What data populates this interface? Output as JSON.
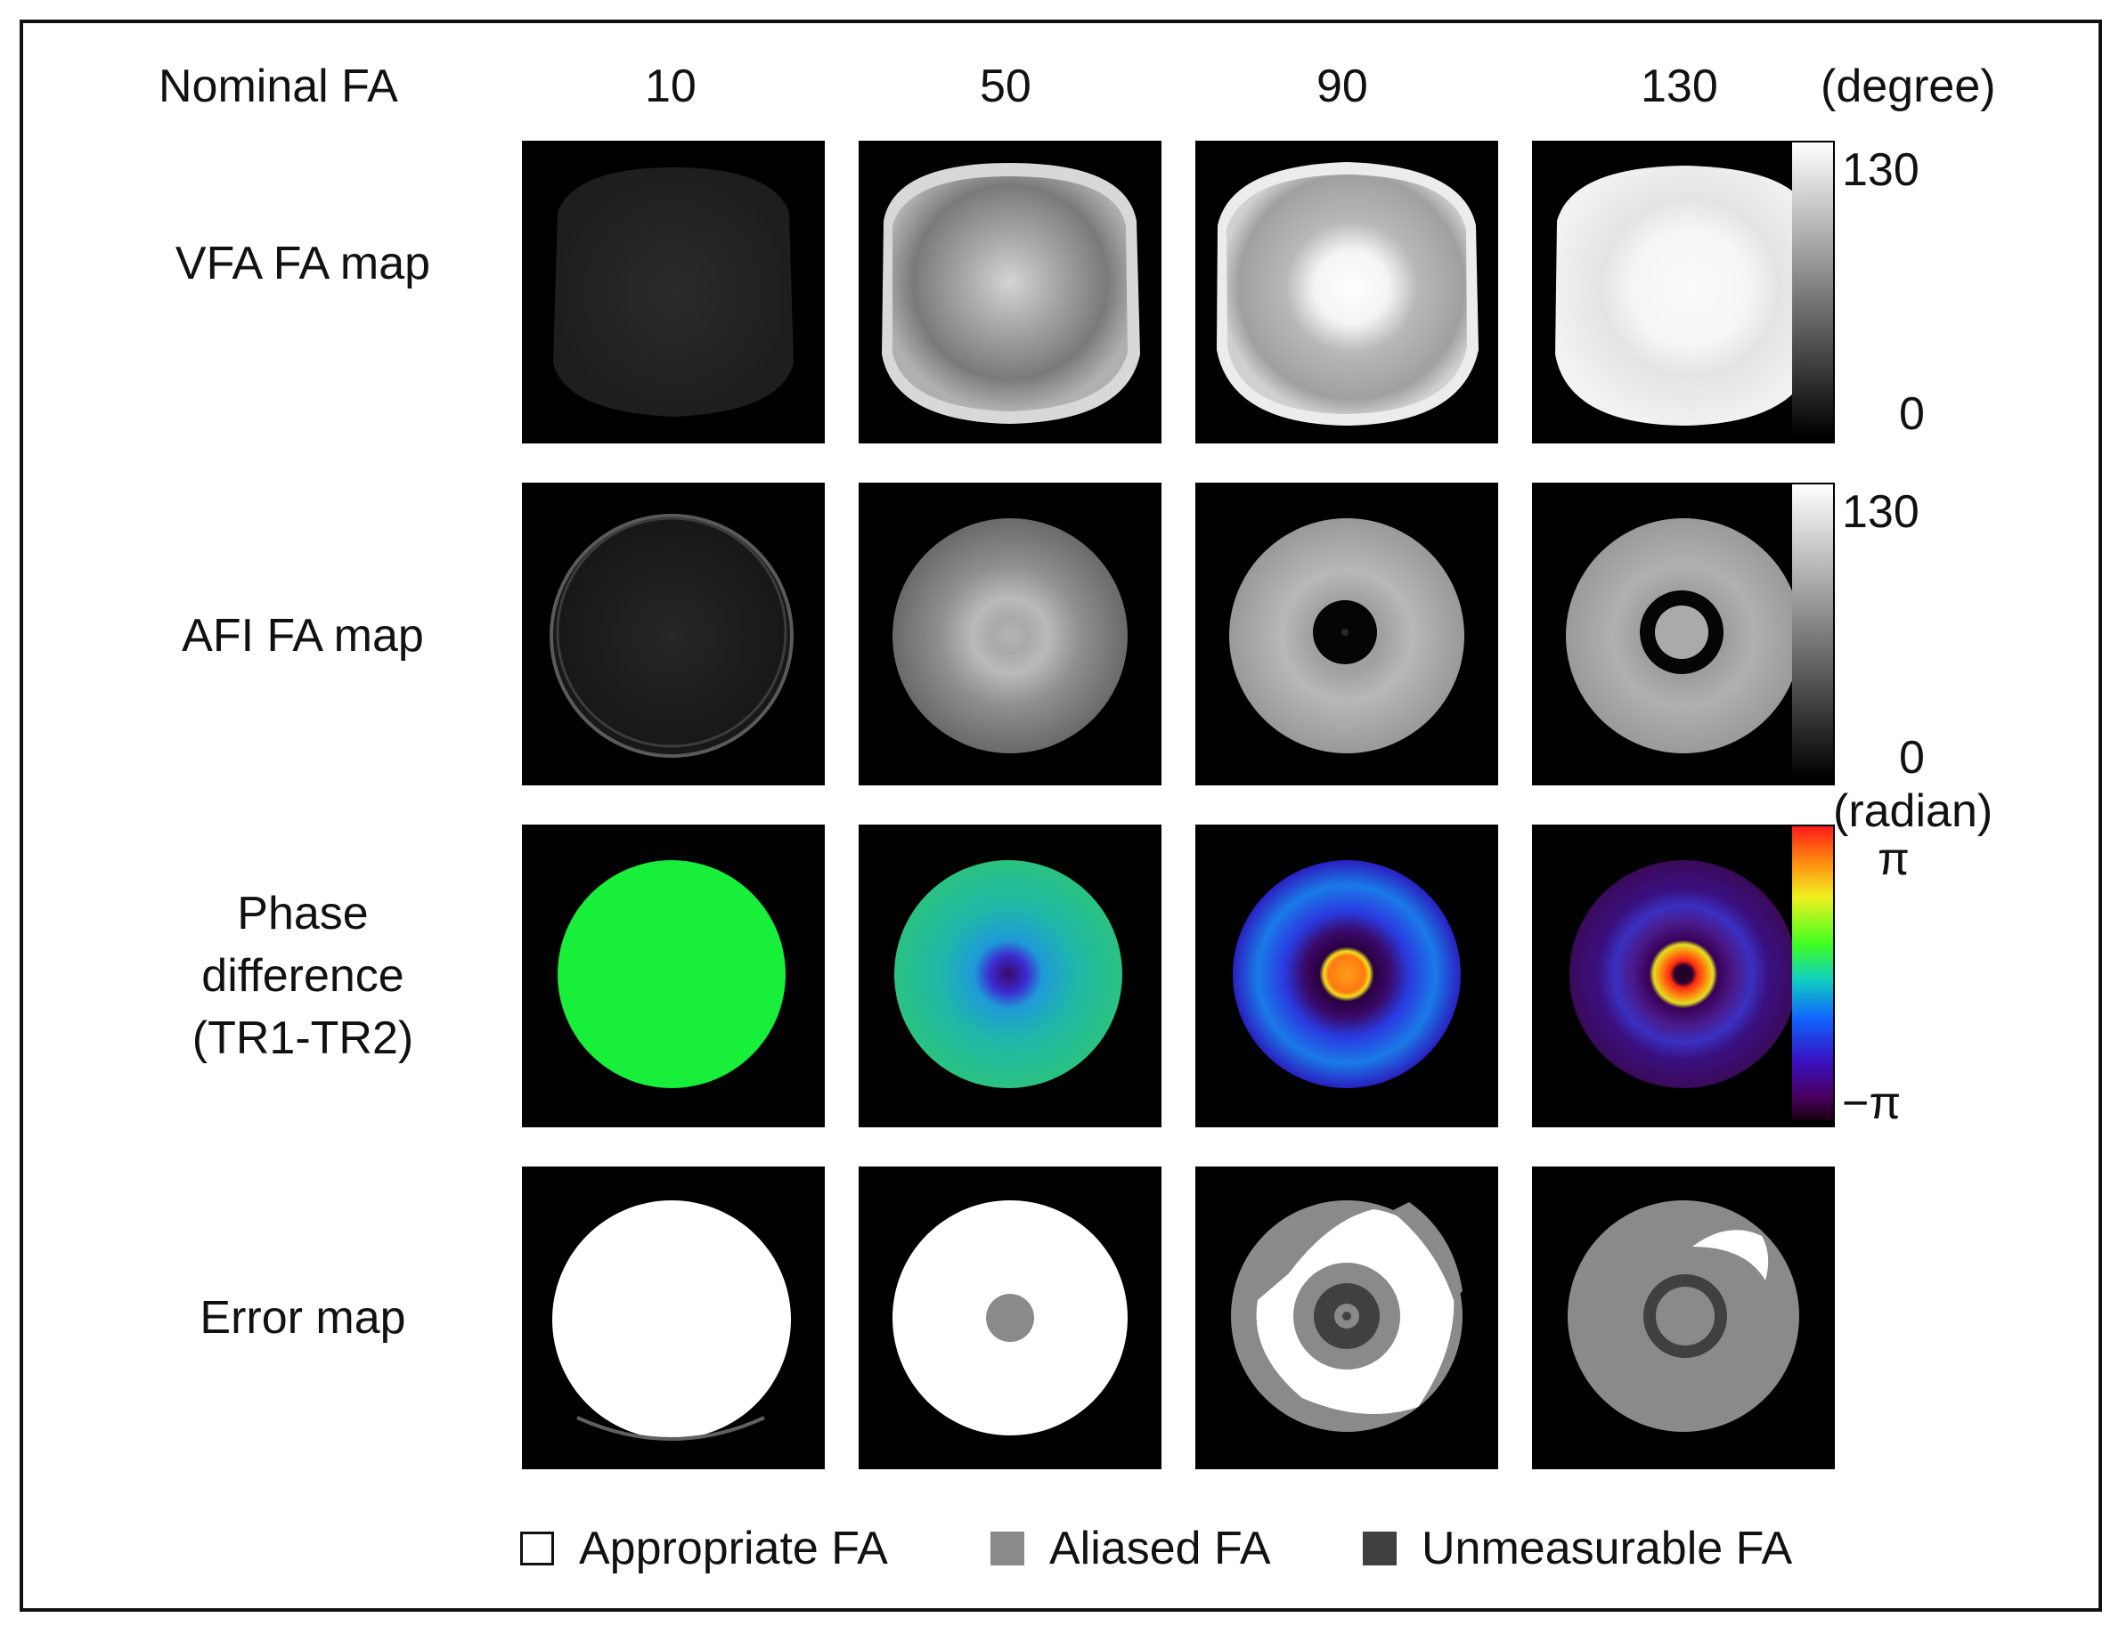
{
  "header": {
    "label": "Nominal FA",
    "values": [
      "10",
      "50",
      "90",
      "130"
    ],
    "unit": "(degree)"
  },
  "rows": {
    "vfa": "VFA FA map",
    "afi": "AFI FA map",
    "phase": [
      "Phase",
      "difference",
      "(TR1-TR2)"
    ],
    "error": "Error map"
  },
  "colorbars": {
    "vfa": {
      "max": "130",
      "min": "0"
    },
    "afi": {
      "max": "130",
      "min": "0"
    },
    "phase": {
      "unit": "(radian)",
      "max": "π",
      "min": "−π"
    }
  },
  "legend": {
    "appropriate": "Appropriate FA",
    "aliased": "Aliased FA",
    "unmeasurable": "Unmeasurable FA",
    "colors": {
      "appropriate": "#ffffff",
      "aliased": "#8a8a8a",
      "unmeasurable": "#404040"
    }
  }
}
